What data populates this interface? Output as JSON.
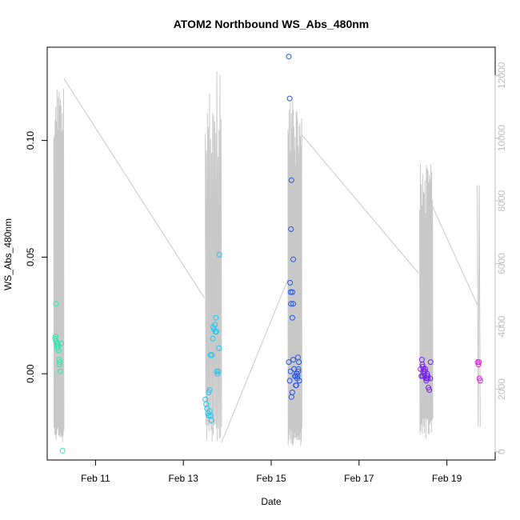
{
  "chart_data": {
    "type": "scatter",
    "title": "ATOM2 Northbound WS_Abs_480nm",
    "xlabel": "Date",
    "ylabel": "WS_Abs_480nm",
    "x_unit": "day",
    "x_ticks": [
      {
        "label": "Feb 11",
        "value": 11
      },
      {
        "label": "Feb 13",
        "value": 13
      },
      {
        "label": "Feb 15",
        "value": 15
      },
      {
        "label": "Feb 17",
        "value": 17
      },
      {
        "label": "Feb 19",
        "value": 19
      }
    ],
    "xlim": [
      9.9,
      20.1
    ],
    "ylim": [
      -0.037,
      0.14
    ],
    "y_ticks": [
      {
        "label": "0.00",
        "value": 0.0
      },
      {
        "label": "0.05",
        "value": 0.05
      },
      {
        "label": "0.10",
        "value": 0.1
      }
    ],
    "y2lim": [
      -260,
      12900
    ],
    "y2_ticks": [
      {
        "label": "0",
        "value": 0
      },
      {
        "label": "2000",
        "value": 2000
      },
      {
        "label": "4000",
        "value": 4000
      },
      {
        "label": "6000",
        "value": 6000
      },
      {
        "label": "8000",
        "value": 8000
      },
      {
        "label": "10000",
        "value": 10000
      },
      {
        "label": "12000",
        "value": 12000
      }
    ],
    "grid": false,
    "legend": "none",
    "secondary_line_color": "#c8c8c8",
    "series": [
      {
        "color": "#2ee8b0",
        "points": [
          [
            10.08,
            0.015
          ],
          [
            10.09,
            0.016
          ],
          [
            10.1,
            0.014
          ],
          [
            10.11,
            0.013
          ],
          [
            10.12,
            0.012
          ],
          [
            10.13,
            0.011
          ],
          [
            10.14,
            0.013
          ],
          [
            10.15,
            0.012
          ],
          [
            10.16,
            0.01
          ],
          [
            10.17,
            0.006
          ],
          [
            10.18,
            0.004
          ],
          [
            10.19,
            0.005
          ],
          [
            10.2,
            0.001
          ],
          [
            10.22,
            0.013
          ],
          [
            10.1,
            0.03
          ],
          [
            10.25,
            -0.033
          ]
        ]
      },
      {
        "color": "#22c4f0",
        "points": [
          [
            13.5,
            -0.011
          ],
          [
            13.52,
            -0.013
          ],
          [
            13.54,
            -0.015
          ],
          [
            13.56,
            -0.017
          ],
          [
            13.58,
            -0.018
          ],
          [
            13.6,
            -0.016
          ],
          [
            13.62,
            -0.018
          ],
          [
            13.64,
            -0.02
          ],
          [
            13.58,
            -0.008
          ],
          [
            13.6,
            -0.007
          ],
          [
            13.62,
            0.008
          ],
          [
            13.65,
            0.008
          ],
          [
            13.67,
            0.015
          ],
          [
            13.68,
            0.02
          ],
          [
            13.7,
            0.019
          ],
          [
            13.72,
            0.021
          ],
          [
            13.73,
            0.018
          ],
          [
            13.74,
            0.024
          ],
          [
            13.75,
            0.018
          ],
          [
            13.76,
            0.001
          ],
          [
            13.78,
            0.0
          ],
          [
            13.8,
            0.001
          ],
          [
            13.81,
            0.011
          ],
          [
            13.82,
            0.051
          ]
        ]
      },
      {
        "color": "#2255ee",
        "points": [
          [
            15.4,
            0.136
          ],
          [
            15.42,
            0.118
          ],
          [
            15.46,
            0.083
          ],
          [
            15.45,
            0.062
          ],
          [
            15.5,
            0.049
          ],
          [
            15.43,
            0.039
          ],
          [
            15.44,
            0.035
          ],
          [
            15.48,
            0.035
          ],
          [
            15.45,
            0.03
          ],
          [
            15.5,
            0.03
          ],
          [
            15.48,
            0.024
          ],
          [
            15.4,
            0.005
          ],
          [
            15.42,
            -0.003
          ],
          [
            15.44,
            0.001
          ],
          [
            15.46,
            -0.01
          ],
          [
            15.48,
            -0.008
          ],
          [
            15.5,
            0.006
          ],
          [
            15.52,
            0.002
          ],
          [
            15.54,
            -0.001
          ],
          [
            15.56,
            -0.005
          ],
          [
            15.57,
            -0.005
          ],
          [
            15.58,
            0.0
          ],
          [
            15.6,
            -0.001
          ],
          [
            15.61,
            0.007
          ],
          [
            15.62,
            0.002
          ],
          [
            15.63,
            0.005
          ],
          [
            15.64,
            -0.003
          ],
          [
            15.62,
            0.001
          ],
          [
            15.59,
            -0.002
          ],
          [
            15.55,
            -0.001
          ]
        ]
      },
      {
        "color": "#7722ee",
        "points": [
          [
            18.4,
            0.002
          ],
          [
            18.42,
            -0.001
          ],
          [
            18.43,
            0.006
          ],
          [
            18.44,
            0.004
          ],
          [
            18.45,
            0.003
          ],
          [
            18.46,
            0.001
          ],
          [
            18.47,
            0.002
          ],
          [
            18.48,
            0.0
          ],
          [
            18.49,
            -0.001
          ],
          [
            18.5,
            0.001
          ],
          [
            18.51,
            0.002
          ],
          [
            18.52,
            -0.002
          ],
          [
            18.53,
            -0.003
          ],
          [
            18.54,
            -0.002
          ],
          [
            18.55,
            0.0
          ],
          [
            18.56,
            -0.001
          ],
          [
            18.57,
            -0.002
          ],
          [
            18.58,
            -0.006
          ],
          [
            18.6,
            -0.007
          ],
          [
            18.62,
            -0.002
          ],
          [
            18.63,
            0.005
          ],
          [
            18.45,
            -0.001
          ]
        ]
      },
      {
        "color": "#dd22dd",
        "points": [
          [
            19.7,
            0.005
          ],
          [
            19.72,
            0.004
          ],
          [
            19.74,
            -0.002
          ],
          [
            19.76,
            -0.003
          ],
          [
            19.73,
            0.005
          ]
        ]
      }
    ],
    "secondary_series": {
      "name": "",
      "bursts": [
        {
          "start": 10.05,
          "end": 10.28,
          "n": 16,
          "hi": [
            10000,
            11600
          ],
          "lo": [
            300,
            800
          ]
        },
        {
          "start": 13.5,
          "end": 13.87,
          "n": 16,
          "hi": [
            9400,
            12200
          ],
          "lo": [
            300,
            900
          ]
        },
        {
          "start": 15.38,
          "end": 15.7,
          "n": 24,
          "hi": [
            9000,
            11200
          ],
          "lo": [
            100,
            800
          ]
        },
        {
          "start": 18.38,
          "end": 18.68,
          "n": 18,
          "hi": [
            7400,
            9400
          ],
          "lo": [
            300,
            1100
          ]
        },
        {
          "start": 19.69,
          "end": 19.76,
          "n": 2,
          "hi": [
            8500,
            8500
          ],
          "lo": [
            800,
            800
          ]
        }
      ],
      "connectors": [
        [
          [
            10.28,
            11900
          ],
          [
            13.48,
            4900
          ]
        ],
        [
          [
            13.87,
            300
          ],
          [
            15.38,
            5500
          ]
        ],
        [
          [
            15.7,
            10100
          ],
          [
            18.35,
            5700
          ]
        ],
        [
          [
            18.68,
            7800
          ],
          [
            19.69,
            4700
          ]
        ]
      ]
    }
  }
}
